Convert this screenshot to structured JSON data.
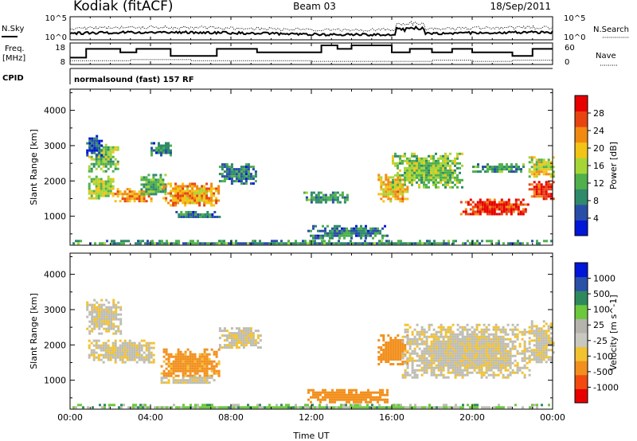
{
  "header": {
    "station": "Kodiak (fitACF)",
    "beam": "Beam 03",
    "date": "18/Sep/2011"
  },
  "noise_panel": {
    "left_label": "N.Sky",
    "right_label": "N.Search",
    "left_ticks": [
      "10^5",
      "10^0"
    ],
    "right_ticks": [
      "10^5",
      "10^0"
    ]
  },
  "freq_panel": {
    "left_label_line1": "Freq.",
    "left_label_line2": "[MHz]",
    "right_label": "Nave",
    "left_ticks": [
      "18",
      "8"
    ],
    "right_ticks": [
      "60",
      "0"
    ],
    "freq_steps": [
      [
        0,
        11
      ],
      [
        0.8,
        16
      ],
      [
        2.5,
        14
      ],
      [
        3.3,
        16
      ],
      [
        5.0,
        12
      ],
      [
        7.3,
        16
      ],
      [
        9.3,
        14
      ],
      [
        12.5,
        18
      ],
      [
        13.3,
        16
      ],
      [
        14.0,
        18
      ],
      [
        16.0,
        14
      ],
      [
        16.9,
        16
      ],
      [
        18.0,
        14
      ],
      [
        19.0,
        16
      ],
      [
        20.0,
        14
      ],
      [
        22.0,
        12
      ],
      [
        23.0,
        16
      ],
      [
        24,
        16
      ]
    ],
    "nave_steps": [
      [
        0,
        10
      ],
      [
        3.0,
        14
      ],
      [
        6.0,
        10
      ],
      [
        12.0,
        8
      ],
      [
        18.0,
        12
      ],
      [
        20.0,
        8
      ],
      [
        22.0,
        12
      ],
      [
        24,
        12
      ]
    ]
  },
  "cpid": {
    "label": "CPID",
    "program": "normalsound (fast) 157 RF"
  },
  "colors": {
    "power_scale": [
      "#0016d8",
      "#2a4ea8",
      "#2f8a6c",
      "#4fb04c",
      "#a6d636",
      "#f2c416",
      "#f28a12",
      "#e84412",
      "#e80000"
    ],
    "velocity_scale": [
      "#e80000",
      "#f24a10",
      "#f2901e",
      "#f2c230",
      "#c8c8c0",
      "#b4b4ac",
      "#6cc83c",
      "#2e8a5c",
      "#2a50a8",
      "#0016d8"
    ],
    "ground_scatter": "#bdbdb5"
  },
  "chart_data": [
    {
      "type": "heatmap",
      "name": "power-panel",
      "ylabel": "Slant Range [km]",
      "xlim": [
        0,
        24
      ],
      "ylim": [
        180,
        4600
      ],
      "yticks": [
        1000,
        2000,
        3000,
        4000
      ],
      "colorbar_label": "Power [dB]",
      "colorbar_range": [
        0,
        32
      ],
      "colorbar_ticks": [
        "4",
        "8",
        "12",
        "16",
        "20",
        "24",
        "28"
      ],
      "regions": [
        {
          "x0": 0.9,
          "x1": 2.4,
          "y0": 2300,
          "y1": 3050,
          "v": 14
        },
        {
          "x0": 0.8,
          "x1": 1.6,
          "y0": 2750,
          "y1": 3300,
          "v": 5
        },
        {
          "x0": 0.9,
          "x1": 2.2,
          "y0": 1500,
          "y1": 2150,
          "v": 16
        },
        {
          "x0": 2.2,
          "x1": 4.0,
          "y0": 1400,
          "y1": 1800,
          "v": 22
        },
        {
          "x0": 3.5,
          "x1": 4.8,
          "y0": 1600,
          "y1": 2200,
          "v": 12
        },
        {
          "x0": 4.0,
          "x1": 5.0,
          "y0": 2750,
          "y1": 3100,
          "v": 8
        },
        {
          "x0": 4.6,
          "x1": 7.4,
          "y0": 1300,
          "y1": 1950,
          "v": 22
        },
        {
          "x0": 5.0,
          "x1": 7.4,
          "y0": 950,
          "y1": 1150,
          "v": 8
        },
        {
          "x0": 7.4,
          "x1": 9.3,
          "y0": 1950,
          "y1": 2500,
          "v": 8
        },
        {
          "x0": 11.6,
          "x1": 13.8,
          "y0": 1400,
          "y1": 1700,
          "v": 10
        },
        {
          "x0": 11.8,
          "x1": 15.8,
          "y0": 400,
          "y1": 750,
          "v": 8
        },
        {
          "x0": 15.3,
          "x1": 16.8,
          "y0": 1450,
          "y1": 2200,
          "v": 20
        },
        {
          "x0": 16.0,
          "x1": 19.5,
          "y0": 1800,
          "y1": 2800,
          "v": 14
        },
        {
          "x0": 19.4,
          "x1": 22.8,
          "y0": 1050,
          "y1": 1500,
          "v": 28
        },
        {
          "x0": 20.0,
          "x1": 22.6,
          "y0": 2250,
          "y1": 2500,
          "v": 10
        },
        {
          "x0": 22.8,
          "x1": 24.0,
          "y0": 1500,
          "y1": 2000,
          "v": 28
        },
        {
          "x0": 22.8,
          "x1": 24.0,
          "y0": 2100,
          "y1": 2700,
          "v": 18
        },
        {
          "x0": 0.0,
          "x1": 24.0,
          "y0": 200,
          "y1": 330,
          "v": 10
        }
      ]
    },
    {
      "type": "heatmap",
      "name": "velocity-panel",
      "ylabel": "Slant Range [km]",
      "xlabel": "Time UT",
      "xlim": [
        0,
        24
      ],
      "ylim": [
        180,
        4600
      ],
      "yticks": [
        1000,
        2000,
        3000,
        4000
      ],
      "xticks": [
        "00:00",
        "04:00",
        "08:00",
        "12:00",
        "16:00",
        "20:00",
        "00:00"
      ],
      "colorbar_label": "Velocity [m s^-1]",
      "colorbar_ticks": [
        "1000",
        "500",
        "100",
        "25",
        "-25",
        "-100",
        "-500",
        "-1000"
      ],
      "regions": [
        {
          "x0": 0.8,
          "x1": 2.5,
          "y0": 2300,
          "y1": 3300,
          "v": -20
        },
        {
          "x0": 0.9,
          "x1": 4.2,
          "y0": 1500,
          "y1": 2150,
          "v": -20
        },
        {
          "x0": 4.5,
          "x1": 7.4,
          "y0": 1100,
          "y1": 1900,
          "v": -150
        },
        {
          "x0": 4.5,
          "x1": 7.4,
          "y0": 900,
          "y1": 1100,
          "v": -20
        },
        {
          "x0": 7.4,
          "x1": 9.5,
          "y0": 1950,
          "y1": 2500,
          "v": -20
        },
        {
          "x0": 11.8,
          "x1": 15.8,
          "y0": 400,
          "y1": 750,
          "v": -200
        },
        {
          "x0": 15.3,
          "x1": 16.8,
          "y0": 1450,
          "y1": 2300,
          "v": -200
        },
        {
          "x0": 16.5,
          "x1": 22.8,
          "y0": 1050,
          "y1": 2600,
          "v": -20
        },
        {
          "x0": 22.8,
          "x1": 24.0,
          "y0": 1500,
          "y1": 2700,
          "v": -20
        },
        {
          "x0": 0.0,
          "x1": 24.0,
          "y0": 200,
          "y1": 330,
          "v": 60
        }
      ]
    }
  ]
}
